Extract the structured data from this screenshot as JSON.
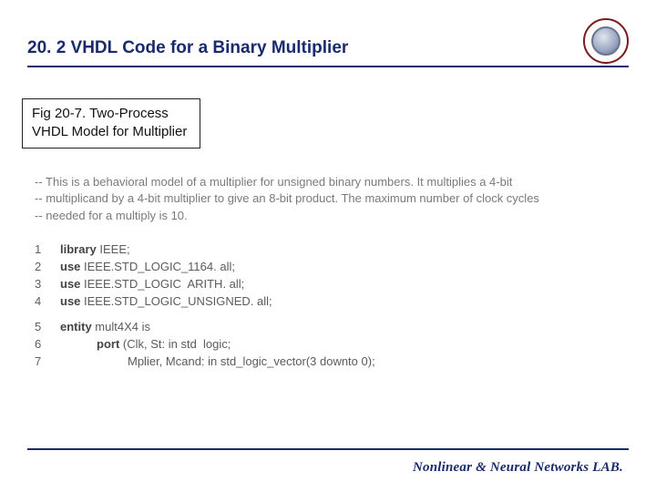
{
  "header": {
    "title": "20. 2 VHDL Code for a Binary Multiplier",
    "title_color": "#1a2b6d",
    "rule_color": "#1a2b6d"
  },
  "figure": {
    "label_line1": "Fig 20-7. Two-Process",
    "label_line2": "VHDL Model for Multiplier"
  },
  "code": {
    "comment1": "-- This is a behavioral model of a multiplier for unsigned binary numbers. It multiplies a 4-bit",
    "comment2": "-- multiplicand by a 4-bit multiplier to give an 8-bit product. The maximum number of clock cycles",
    "comment3": "-- needed for a multiply is 10.",
    "lines": {
      "1": {
        "n": "1",
        "kw": "library",
        "rest": " IEEE;"
      },
      "2": {
        "n": "2",
        "kw": "use",
        "rest": " IEEE.STD_LOGIC_1164. all;"
      },
      "3": {
        "n": "3",
        "kw": "use",
        "rest": " IEEE.STD_LOGIC  ARITH. all;"
      },
      "4": {
        "n": "4",
        "kw": "use",
        "rest": " IEEE.STD_LOGIC_UNSIGNED. all;"
      },
      "5": {
        "n": "5",
        "kw": "entity",
        "rest": " mult4X4 is"
      },
      "6": {
        "n": "6",
        "kw": "port",
        "rest": " (Clk, St: in std  logic;"
      },
      "7": {
        "n": "7",
        "text": "Mplier, Mcand: in std_logic_vector(3 downto 0);"
      }
    }
  },
  "footer": {
    "text": "Nonlinear & Neural Networks LAB.",
    "color": "#1a2b6d"
  },
  "colors": {
    "background": "#ffffff",
    "text_muted": "#6a6a6a"
  }
}
